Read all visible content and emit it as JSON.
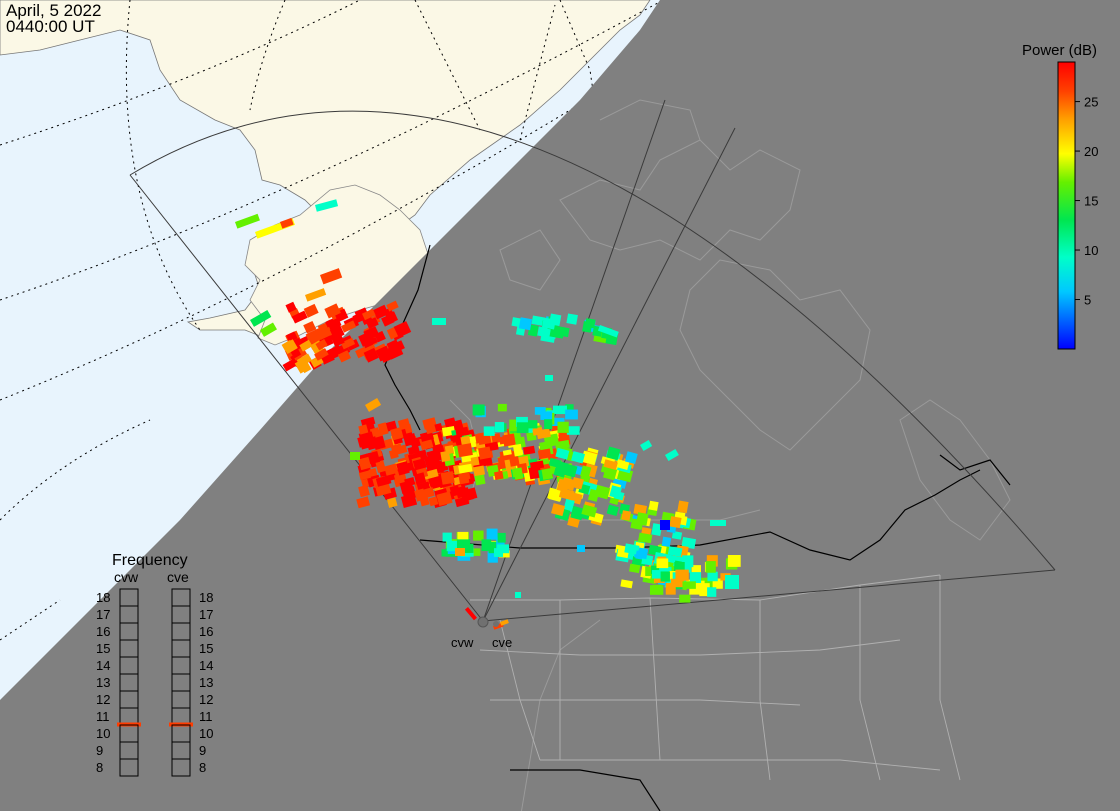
{
  "header": {
    "date": "April, 5 2022",
    "time": "0440:00 UT"
  },
  "colorbar": {
    "title": "Power (dB)",
    "ticks": [
      {
        "value": 25,
        "label": "25"
      },
      {
        "value": 20,
        "label": "20"
      },
      {
        "value": 15,
        "label": "15"
      },
      {
        "value": 10,
        "label": "10"
      },
      {
        "value": 5,
        "label": "5"
      }
    ],
    "range": [
      0,
      29
    ],
    "stops": [
      "#0000ff",
      "#00c8ff",
      "#00ffc8",
      "#00e650",
      "#64f000",
      "#ffff00",
      "#ffa000",
      "#ff4000",
      "#ff0000"
    ]
  },
  "frequency_panel": {
    "title": "Frequency",
    "radars": [
      {
        "label": "cvw",
        "selected_mhz": 11
      },
      {
        "label": "cve",
        "selected_mhz": 11
      }
    ],
    "levels": [
      "18",
      "17",
      "16",
      "15",
      "14",
      "13",
      "12",
      "11",
      "10",
      "9",
      "8"
    ],
    "marker_color": "#ff3c00"
  },
  "radar_sites": [
    {
      "label": "cvw"
    },
    {
      "label": "cve"
    }
  ],
  "colors": {
    "ocean": "#e8f4fd",
    "land_day": "#fbf8e6",
    "night": "#808080",
    "border_lines": "#000000",
    "province_lines": "#b0b0b0",
    "fov_lines": "#333333"
  }
}
